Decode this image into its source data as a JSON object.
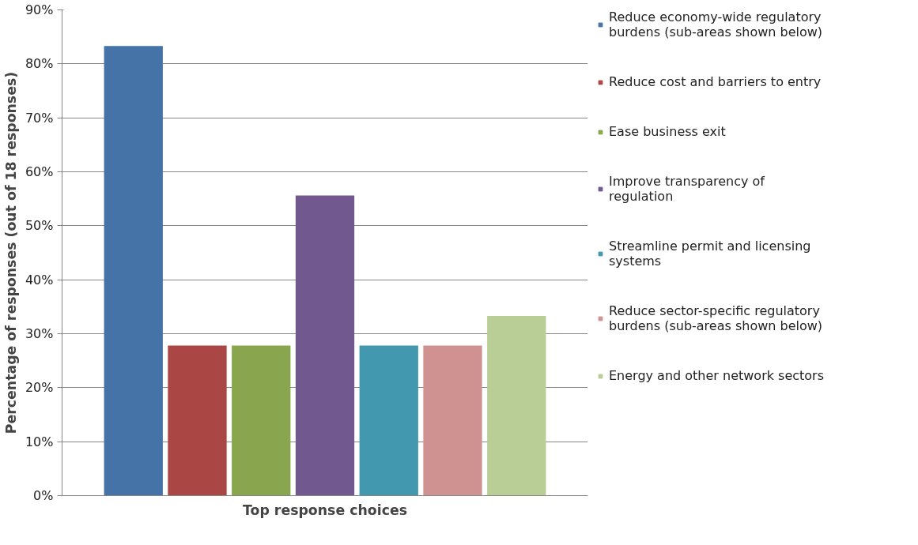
{
  "chart_data": {
    "type": "bar",
    "xlabel": "Top response choices",
    "ylabel": "Percentage of responses (out of 18 responses)",
    "categories": [
      null
    ],
    "series": [
      {
        "name": "Reduce economy-wide regulatory burdens (sub-areas shown below)",
        "color": "#4572a7",
        "values": [
          83.3
        ]
      },
      {
        "name": "Reduce cost and barriers to entry",
        "color": "#aa4643",
        "values": [
          27.8
        ]
      },
      {
        "name": "Ease business exit",
        "color": "#89a54e",
        "values": [
          27.8
        ]
      },
      {
        "name": "Improve transparency of regulation",
        "color": "#71588f",
        "values": [
          55.6
        ]
      },
      {
        "name": "Streamline permit and licensing systems",
        "color": "#4198af",
        "values": [
          27.8
        ]
      },
      {
        "name": "Reduce sector-specific regulatory burdens (sub-areas shown below)",
        "color": "#d09291",
        "values": [
          27.8
        ]
      },
      {
        "name": "Energy and other network sectors",
        "color": "#b9cd96",
        "values": [
          33.3
        ]
      }
    ],
    "ylim": [
      0,
      90
    ],
    "yticks": [
      {
        "value": 0,
        "label": "0%"
      },
      {
        "value": 10,
        "label": "10%"
      },
      {
        "value": 20,
        "label": "20%"
      },
      {
        "value": 30,
        "label": "30%"
      },
      {
        "value": 40,
        "label": "40%"
      },
      {
        "value": 50,
        "label": "50%"
      },
      {
        "value": 60,
        "label": "60%"
      },
      {
        "value": 70,
        "label": "70%"
      },
      {
        "value": 80,
        "label": "80%"
      },
      {
        "value": 90,
        "label": "90%"
      }
    ],
    "grid": "y",
    "legend": "right"
  }
}
